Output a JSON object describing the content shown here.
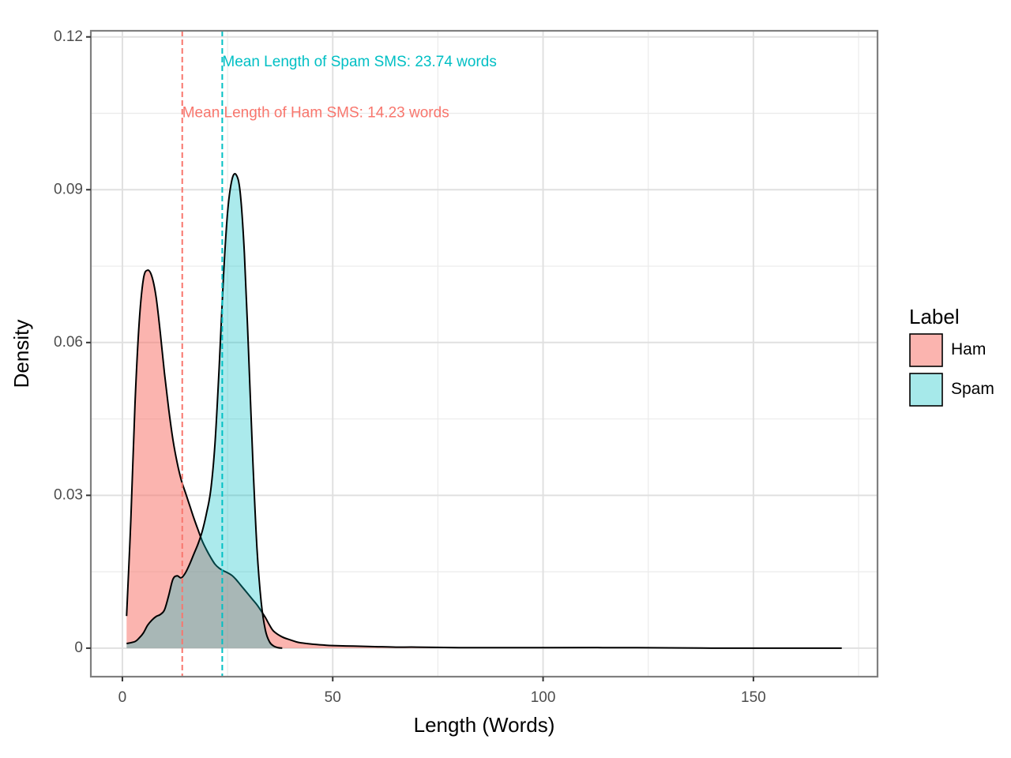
{
  "chart_data": {
    "type": "area",
    "xlabel": "Length (Words)",
    "ylabel": "Density",
    "xlim": [
      -7.5,
      179.5
    ],
    "ylim": [
      -0.0056,
      0.1212
    ],
    "x_ticks": [
      0,
      50,
      100,
      150
    ],
    "x_tick_labels": [
      "0",
      "50",
      "100",
      "150"
    ],
    "y_ticks": [
      0,
      0.03,
      0.06,
      0.09,
      0.12
    ],
    "y_tick_labels": [
      "0",
      "0.03",
      "0.06",
      "0.09",
      "0.12"
    ],
    "grid": true,
    "legend": {
      "title": "Label",
      "position": "right",
      "entries": [
        {
          "label": "Ham",
          "color": "#F8766D"
        },
        {
          "label": "Spam",
          "color": "#00BFC4"
        }
      ]
    },
    "series": [
      {
        "name": "Ham",
        "color": "#F8766D",
        "points": [
          [
            1,
            0.0063
          ],
          [
            2,
            0.025
          ],
          [
            3,
            0.048
          ],
          [
            4,
            0.064
          ],
          [
            5,
            0.0725
          ],
          [
            6,
            0.0742
          ],
          [
            7,
            0.073
          ],
          [
            8,
            0.069
          ],
          [
            9,
            0.062
          ],
          [
            10,
            0.054
          ],
          [
            11,
            0.047
          ],
          [
            12,
            0.041
          ],
          [
            13,
            0.0365
          ],
          [
            14,
            0.033
          ],
          [
            15,
            0.0305
          ],
          [
            16,
            0.028
          ],
          [
            17,
            0.0255
          ],
          [
            18,
            0.0232
          ],
          [
            19,
            0.021
          ],
          [
            20,
            0.0193
          ],
          [
            21,
            0.0178
          ],
          [
            22,
            0.0165
          ],
          [
            23,
            0.0157
          ],
          [
            24,
            0.0152
          ],
          [
            25,
            0.0148
          ],
          [
            26,
            0.0143
          ],
          [
            27,
            0.0135
          ],
          [
            28,
            0.0125
          ],
          [
            29,
            0.0115
          ],
          [
            30,
            0.0105
          ],
          [
            31,
            0.0095
          ],
          [
            32,
            0.0085
          ],
          [
            33,
            0.0073
          ],
          [
            34,
            0.006
          ],
          [
            35,
            0.0045
          ],
          [
            36,
            0.0033
          ],
          [
            38,
            0.0022
          ],
          [
            40,
            0.0016
          ],
          [
            42,
            0.0011
          ],
          [
            45,
            0.0008
          ],
          [
            48,
            0.0006
          ],
          [
            50,
            0.0005
          ],
          [
            55,
            0.0004
          ],
          [
            60,
            0.0003
          ],
          [
            65,
            0.0002
          ],
          [
            70,
            0.0002
          ],
          [
            80,
            0.0001
          ],
          [
            90,
            0.0001
          ],
          [
            100,
            0.0001
          ],
          [
            120,
            0.0001
          ],
          [
            140,
            0.0
          ],
          [
            160,
            0.0
          ],
          [
            171,
            0.0
          ]
        ]
      },
      {
        "name": "Spam",
        "color": "#00BFC4",
        "points": [
          [
            1,
            0.0009
          ],
          [
            3,
            0.0013
          ],
          [
            4,
            0.002
          ],
          [
            5,
            0.003
          ],
          [
            6,
            0.0045
          ],
          [
            7,
            0.0055
          ],
          [
            8,
            0.0062
          ],
          [
            9,
            0.0066
          ],
          [
            10,
            0.0075
          ],
          [
            11,
            0.0103
          ],
          [
            12,
            0.0135
          ],
          [
            13,
            0.0142
          ],
          [
            14,
            0.0138
          ],
          [
            15,
            0.0148
          ],
          [
            16,
            0.0165
          ],
          [
            17,
            0.0185
          ],
          [
            18,
            0.0205
          ],
          [
            19,
            0.023
          ],
          [
            20,
            0.0265
          ],
          [
            21,
            0.031
          ],
          [
            22,
            0.04
          ],
          [
            23,
            0.055
          ],
          [
            24,
            0.0725
          ],
          [
            25,
            0.0855
          ],
          [
            26,
            0.0918
          ],
          [
            27,
            0.093
          ],
          [
            28,
            0.0895
          ],
          [
            29,
            0.0775
          ],
          [
            30,
            0.058
          ],
          [
            31,
            0.037
          ],
          [
            32,
            0.0195
          ],
          [
            33,
            0.009
          ],
          [
            34,
            0.0035
          ],
          [
            35,
            0.0012
          ],
          [
            36,
            0.0004
          ],
          [
            37,
            0.0001
          ],
          [
            38,
            0.0
          ]
        ]
      }
    ],
    "mean_lines": [
      {
        "series": "Ham",
        "x": 14.23,
        "color": "#F8766D",
        "label": "Mean Length of Ham SMS: 14.23 words",
        "label_y": 0.105
      },
      {
        "series": "Spam",
        "x": 23.74,
        "color": "#00BFC4",
        "label": "Mean Length of Spam SMS: 23.74 words",
        "label_y": 0.115
      }
    ]
  }
}
